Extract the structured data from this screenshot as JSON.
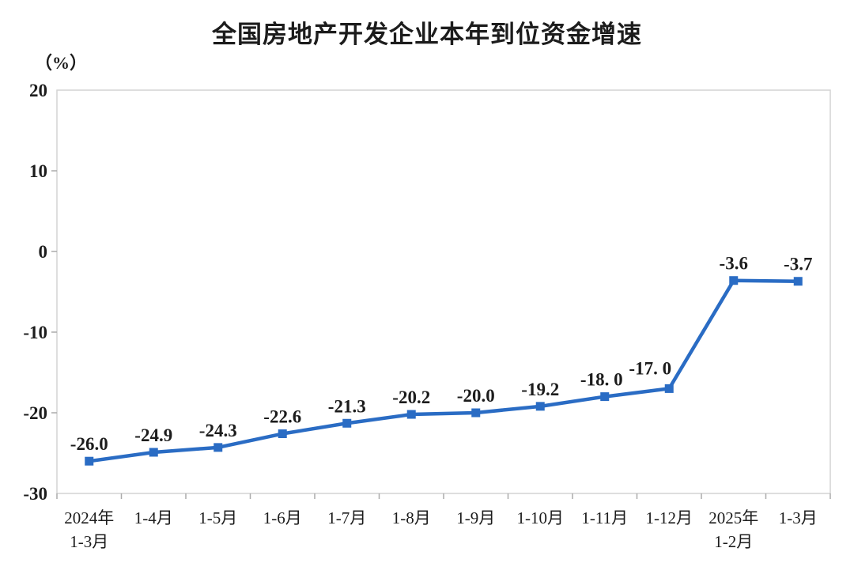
{
  "header": {
    "title": "全国房地产开发企业本年到位资金增速",
    "unit_label": "（%）"
  },
  "colors": {
    "series_line": "#2a6cc4",
    "marker": "#2a6cc4",
    "plot_border": "#d4d4d4",
    "tick_mark": "#ababab",
    "text": "#1c1c1c",
    "background": "#ffffff"
  },
  "chart_data": {
    "type": "line",
    "title": "全国房地产开发企业本年到位资金增速",
    "ylabel": "（%）",
    "xlabel": "",
    "categories": [
      "2024年\n1-3月",
      "1-4月",
      "1-5月",
      "1-6月",
      "1-7月",
      "1-8月",
      "1-9月",
      "1-10月",
      "1-11月",
      "1-12月",
      "2025年\n1-2月",
      "1-3月"
    ],
    "values": [
      -26.0,
      -24.9,
      -24.3,
      -22.6,
      -21.3,
      -20.2,
      -20.0,
      -19.2,
      -18.0,
      -17.0,
      -3.6,
      -3.7
    ],
    "point_labels": [
      "-26.0",
      "-24.9",
      "-24.3",
      "-22.6",
      "-21.3",
      "-20.2",
      "-20.0",
      "-19.2",
      "-18. 0",
      "-17. 0",
      "-3.6",
      "-3.7"
    ],
    "ylim": [
      -30,
      20
    ],
    "yticks": [
      20,
      10,
      0,
      -10,
      -20,
      -30
    ],
    "grid": false,
    "legend": "none",
    "marker": "square",
    "label_dx": [
      0,
      0,
      0,
      0,
      0,
      0,
      0,
      0,
      -4,
      -24,
      0,
      0
    ],
    "label_dy": [
      0,
      0,
      0,
      0,
      0,
      0,
      0,
      0,
      0,
      -4,
      0,
      0
    ]
  }
}
